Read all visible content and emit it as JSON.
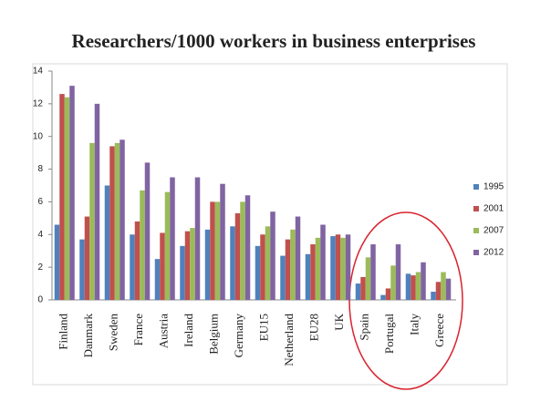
{
  "chart_data": {
    "type": "bar",
    "title": "Researchers/1000 workers in business enterprises",
    "categories": [
      "Finland",
      "Danmark",
      "Sweden",
      "France",
      "Austria",
      "Ireland",
      "Belgium",
      "Germany",
      "EU15",
      "Netherland",
      "EU28",
      "UK",
      "Spain",
      "Portugal",
      "Italy",
      "Greece"
    ],
    "series": [
      {
        "name": "1995",
        "color": "#4f81bd",
        "values": [
          4.6,
          3.7,
          7.0,
          4.0,
          2.5,
          3.3,
          4.3,
          4.5,
          3.3,
          2.7,
          2.8,
          3.9,
          1.0,
          0.3,
          1.6,
          0.5
        ]
      },
      {
        "name": "2001",
        "color": "#c0504d",
        "values": [
          12.6,
          5.1,
          9.4,
          4.8,
          4.1,
          4.2,
          6.0,
          5.3,
          4.0,
          3.7,
          3.4,
          4.0,
          1.4,
          0.7,
          1.5,
          1.1
        ]
      },
      {
        "name": "2007",
        "color": "#9bbb59",
        "values": [
          12.4,
          9.6,
          9.6,
          6.7,
          6.6,
          4.4,
          6.0,
          6.0,
          4.5,
          4.3,
          3.8,
          3.8,
          2.6,
          2.1,
          1.7,
          1.7
        ]
      },
      {
        "name": "2012",
        "color": "#8064a2",
        "values": [
          13.1,
          12.0,
          9.8,
          8.4,
          7.5,
          7.5,
          7.1,
          6.4,
          5.4,
          5.1,
          4.6,
          4.0,
          3.4,
          3.4,
          2.3,
          1.3
        ]
      }
    ],
    "ylim": [
      0,
      14
    ],
    "yticks": [
      0,
      2,
      4,
      6,
      8,
      10,
      12,
      14
    ],
    "grid": false
  }
}
